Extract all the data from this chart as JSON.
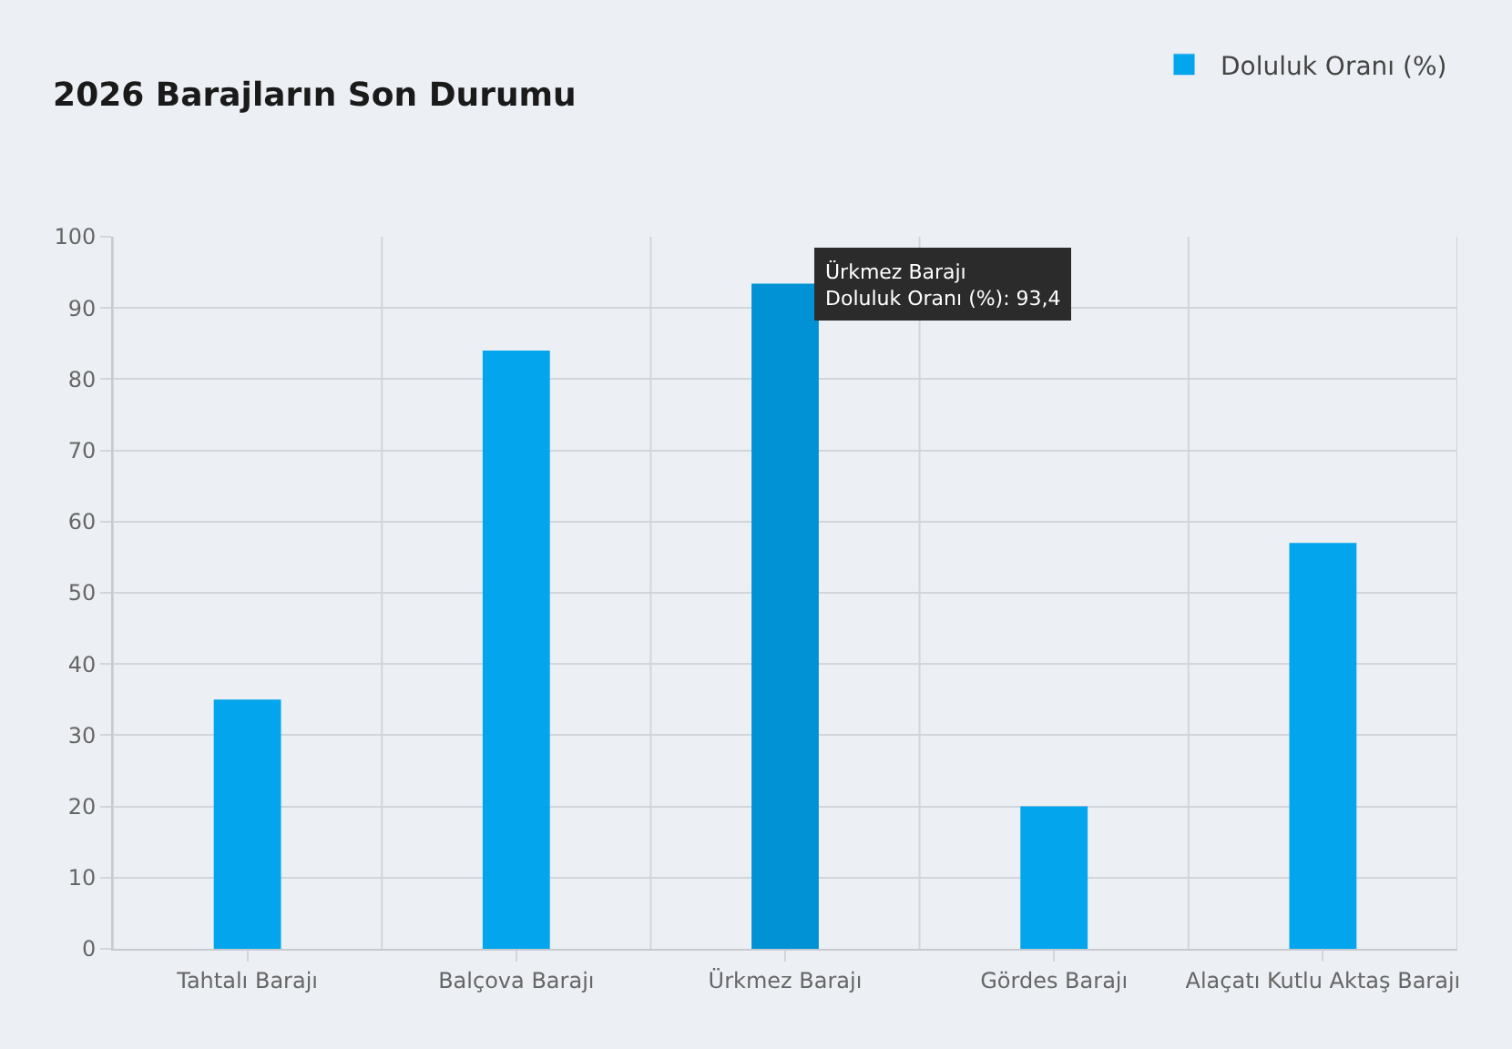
{
  "chart_data": {
    "type": "bar",
    "title": "2026 Barajların Son Durumu",
    "categories": [
      "Tahtalı Barajı",
      "Balçova Barajı",
      "Ürkmez Barajı",
      "Gördes Barajı",
      "Alaçatı Kutlu Aktaş Barajı"
    ],
    "series": [
      {
        "name": "Doluluk Oranı (%)",
        "color": "#03a5ec",
        "colors": [
          "#03a5ec",
          "#03a5ec",
          "#0092d5",
          "#03a5ec",
          "#03a5ec"
        ],
        "values": [
          35,
          84,
          93.4,
          20,
          57
        ]
      }
    ],
    "ylim": [
      0,
      100
    ],
    "yticks": [
      0,
      10,
      20,
      30,
      40,
      50,
      60,
      70,
      80,
      90,
      100
    ],
    "grid": true,
    "legend": "top right",
    "annotations": [
      {
        "text": "Ürkmez Barajı\nDoluluk Oranı (%): 93,4",
        "x": "Ürkmez Barajı",
        "y": 93.4
      }
    ]
  }
}
